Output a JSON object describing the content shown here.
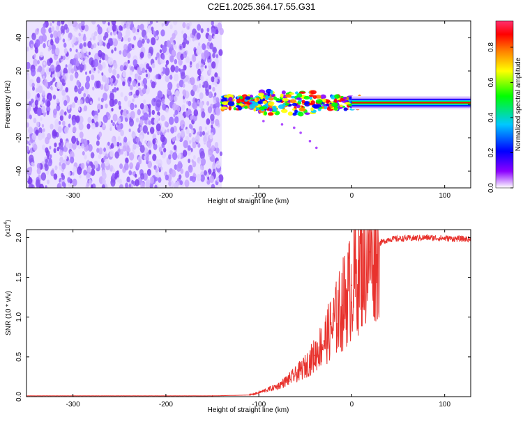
{
  "title": "C2E1.2025.364.17.55.G31",
  "colors": {
    "line": "#e8322d",
    "axis": "#000000",
    "colorbar": [
      "#ffffff",
      "#8b00ff",
      "#0000ff",
      "#00c8ff",
      "#00ff00",
      "#ffff00",
      "#ff7f00",
      "#ff0000",
      "#ff3070"
    ]
  },
  "chart_data": [
    {
      "type": "heatmap",
      "name": "spectrogram",
      "xlabel": "Height of straight line (km)",
      "ylabel": "Frequency (Hz)",
      "xlim": [
        -350,
        128
      ],
      "ylim": [
        -50,
        50
      ],
      "x_ticks": [
        -300,
        -200,
        -100,
        0,
        100
      ],
      "x_tick_labels": [
        "-300",
        "-200",
        "-100",
        "0",
        "100"
      ],
      "y_ticks": [
        -40,
        -20,
        0,
        20,
        40
      ],
      "y_tick_labels": [
        "-40",
        "-20",
        "0",
        "20",
        "40"
      ],
      "noise_region_x": [
        -350,
        -140
      ],
      "signal_start_x": -140,
      "signal_freq_hz": 1,
      "colorbar": {
        "label": "Normalized spectral amplitude",
        "range": [
          0,
          0.95
        ],
        "ticks": [
          0,
          0.2,
          0.4,
          0.6,
          0.8
        ],
        "tick_labels": [
          "0.0",
          "0.2",
          "0.4",
          "0.6",
          "0.8"
        ]
      }
    },
    {
      "type": "line",
      "name": "snr",
      "xlabel": "Height of straight line (km)",
      "ylabel": "SNR (10 * v/v)",
      "multiplier": "(x10^4)",
      "multiplier_base": "(x10",
      "multiplier_exp": "4",
      "multiplier_close": ")",
      "xlim": [
        -350,
        128
      ],
      "ylim": [
        0,
        2.1
      ],
      "x_ticks": [
        -300,
        -200,
        -100,
        0,
        100
      ],
      "x_tick_labels": [
        "-300",
        "-200",
        "-100",
        "0",
        "100"
      ],
      "y_ticks": [
        0,
        0.5,
        1.0,
        1.5,
        2.0
      ],
      "y_tick_labels": [
        "0.0",
        "0.5",
        "1.0",
        "1.5",
        "2.0"
      ],
      "x": [
        -350,
        -300,
        -200,
        -150,
        -110,
        -100,
        -90,
        -80,
        -70,
        -60,
        -50,
        -40,
        -30,
        -20,
        -10,
        0,
        10,
        20,
        30,
        40,
        60,
        80,
        100,
        128
      ],
      "y": [
        0.01,
        0.01,
        0.01,
        0.01,
        0.02,
        0.05,
        0.09,
        0.13,
        0.2,
        0.28,
        0.38,
        0.52,
        0.7,
        0.9,
        1.15,
        1.4,
        1.65,
        1.82,
        1.93,
        1.98,
        1.99,
        2.0,
        1.99,
        1.98
      ]
    }
  ]
}
